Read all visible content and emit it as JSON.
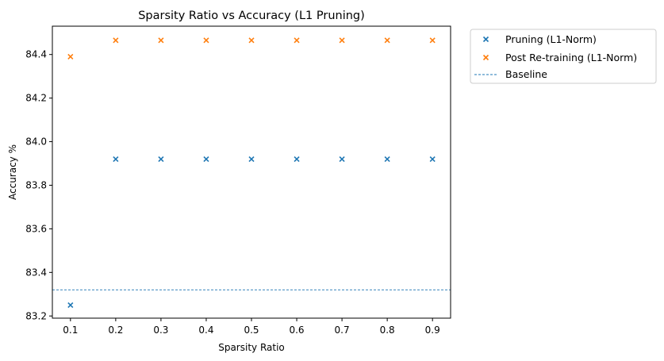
{
  "chart_data": {
    "type": "scatter",
    "title": "Sparsity Ratio vs Accuracy (L1 Pruning)",
    "xlabel": "Sparsity Ratio",
    "ylabel": "Accuracy %",
    "x": [
      0.1,
      0.2,
      0.3,
      0.4,
      0.5,
      0.6,
      0.7,
      0.8,
      0.9
    ],
    "xticks": [
      "0.1",
      "0.2",
      "0.3",
      "0.4",
      "0.5",
      "0.6",
      "0.7",
      "0.8",
      "0.9"
    ],
    "yticks": [
      "83.2",
      "83.4",
      "83.6",
      "83.8",
      "84.0",
      "84.2",
      "84.4"
    ],
    "xlim": [
      0.06,
      0.94
    ],
    "ylim": [
      83.19,
      84.53
    ],
    "series": [
      {
        "name": "Pruning (L1-Norm)",
        "marker": "x",
        "color": "#1f77b4",
        "values": [
          83.25,
          83.92,
          83.92,
          83.92,
          83.92,
          83.92,
          83.92,
          83.92,
          83.92
        ]
      },
      {
        "name": "Post Re-training (L1-Norm)",
        "marker": "x",
        "color": "#ff7f0e",
        "values": [
          84.39,
          84.465,
          84.465,
          84.465,
          84.465,
          84.465,
          84.465,
          84.465,
          84.465
        ]
      }
    ],
    "baseline": {
      "name": "Baseline",
      "value": 83.32,
      "style": "dashed",
      "color": "#1f77b4"
    },
    "grid": false,
    "legend": "outside upper-right"
  }
}
